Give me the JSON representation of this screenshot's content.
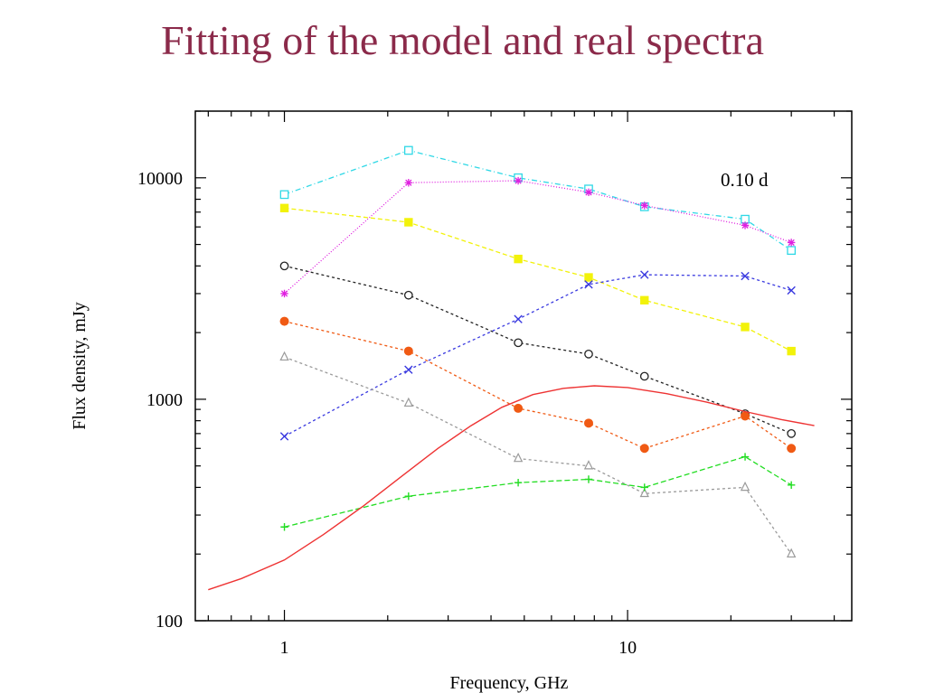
{
  "slide": {
    "title": "Fitting of the model and real spectra"
  },
  "chart_data": {
    "type": "line",
    "xlabel": "Frequency, GHz",
    "ylabel": "Flux density, mJy",
    "x_scale": "log",
    "y_scale": "log",
    "xlim": [
      0.55,
      45
    ],
    "ylim": [
      100,
      20000
    ],
    "x_ticks": [
      {
        "value": 1,
        "label": "1"
      },
      {
        "value": 10,
        "label": "10"
      }
    ],
    "y_ticks": [
      {
        "value": 100,
        "label": "100"
      },
      {
        "value": 1000,
        "label": "1000"
      },
      {
        "value": 10000,
        "label": "10000"
      }
    ],
    "annotation": "0.10 d",
    "series": [
      {
        "marker": "open-square",
        "color": "#2fd8e6",
        "dash": "6,3,1,3",
        "x": [
          1.0,
          2.3,
          4.8,
          7.7,
          11.2,
          22.0,
          30.0
        ],
        "y": [
          8400,
          13300,
          10000,
          8900,
          7400,
          6500,
          4700
        ]
      },
      {
        "marker": "star",
        "color": "#e020e0",
        "dash": "1,2",
        "x": [
          1.0,
          2.3,
          4.8,
          7.7,
          11.2,
          22.0,
          30.0
        ],
        "y": [
          3000,
          9500,
          9700,
          8600,
          7500,
          6100,
          5100
        ]
      },
      {
        "marker": "filled-square",
        "color": "#f2f20a",
        "dash": "5,3",
        "x": [
          1.0,
          2.3,
          4.8,
          7.7,
          11.2,
          22.0,
          30.0
        ],
        "y": [
          7300,
          6300,
          4300,
          3550,
          2800,
          2120,
          1650
        ]
      },
      {
        "marker": "open-circle",
        "color": "#222222",
        "dash": "3,3",
        "x": [
          1.0,
          2.3,
          4.8,
          7.7,
          11.2,
          22.0,
          30.0
        ],
        "y": [
          4000,
          2950,
          1800,
          1600,
          1270,
          860,
          700
        ]
      },
      {
        "marker": "x-cross",
        "color": "#3a3ae0",
        "dash": "3,3",
        "x": [
          1.0,
          2.3,
          4.8,
          7.7,
          11.2,
          22.0,
          30.0
        ],
        "y": [
          680,
          1360,
          2300,
          3300,
          3650,
          3600,
          3100
        ]
      },
      {
        "marker": "filled-circle",
        "color": "#f05a14",
        "dash": "3,3",
        "x": [
          1.0,
          2.3,
          4.8,
          7.7,
          11.2,
          22.0,
          30.0
        ],
        "y": [
          2250,
          1650,
          910,
          780,
          600,
          840,
          600
        ]
      },
      {
        "marker": "open-triangle",
        "color": "#9a9a9a",
        "dash": "3,3",
        "x": [
          1.0,
          2.3,
          4.8,
          7.7,
          11.2,
          22.0,
          30.0
        ],
        "y": [
          1550,
          960,
          540,
          500,
          375,
          400,
          200
        ]
      },
      {
        "marker": "plus",
        "color": "#22dd22",
        "dash": "6,3",
        "x": [
          1.0,
          2.3,
          4.8,
          7.7,
          11.2,
          22.0,
          30.0
        ],
        "y": [
          265,
          365,
          420,
          435,
          400,
          550,
          410
        ]
      },
      {
        "marker": "none",
        "color": "#ee3333",
        "dash": "",
        "x": [
          0.6,
          0.75,
          1.0,
          1.3,
          1.7,
          2.2,
          2.8,
          3.5,
          4.3,
          5.3,
          6.5,
          8.0,
          10.0,
          13.0,
          17.0,
          22.0,
          28.0,
          35.0
        ],
        "y": [
          138,
          155,
          188,
          245,
          330,
          450,
          600,
          760,
          920,
          1050,
          1120,
          1150,
          1130,
          1060,
          970,
          880,
          810,
          760
        ]
      }
    ]
  }
}
